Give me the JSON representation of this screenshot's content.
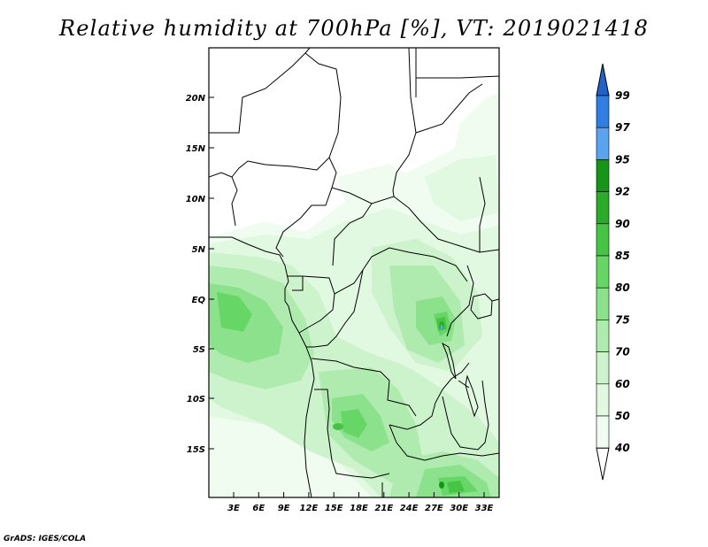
{
  "title": "Relative humidity at 700hPa [%], VT: 2019021418",
  "credit": "GrADS: IGES/COLA",
  "map": {
    "lat_labels": [
      "20N",
      "15N",
      "10N",
      "5N",
      "EQ",
      "5S",
      "10S",
      "15S"
    ],
    "lon_labels": [
      "3E",
      "6E",
      "9E",
      "12E",
      "15E",
      "18E",
      "21E",
      "24E",
      "27E",
      "30E",
      "33E"
    ]
  },
  "colorbar": {
    "labels": [
      "99",
      "97",
      "95",
      "92",
      "90",
      "85",
      "80",
      "75",
      "70",
      "60",
      "50",
      "40"
    ],
    "colors": {
      "above99": "#1f63c6",
      "97_99": "#2f7fe3",
      "95_97": "#5aa4ef",
      "92_95": "#169616",
      "90_92": "#2aac2a",
      "85_90": "#46c446",
      "80_85": "#66d666",
      "75_80": "#8ce28c",
      "70_75": "#afebaf",
      "60_70": "#cdf3cd",
      "50_60": "#e1f8e1",
      "40_50": "#f1fcf1",
      "below40": "#ffffff"
    }
  }
}
